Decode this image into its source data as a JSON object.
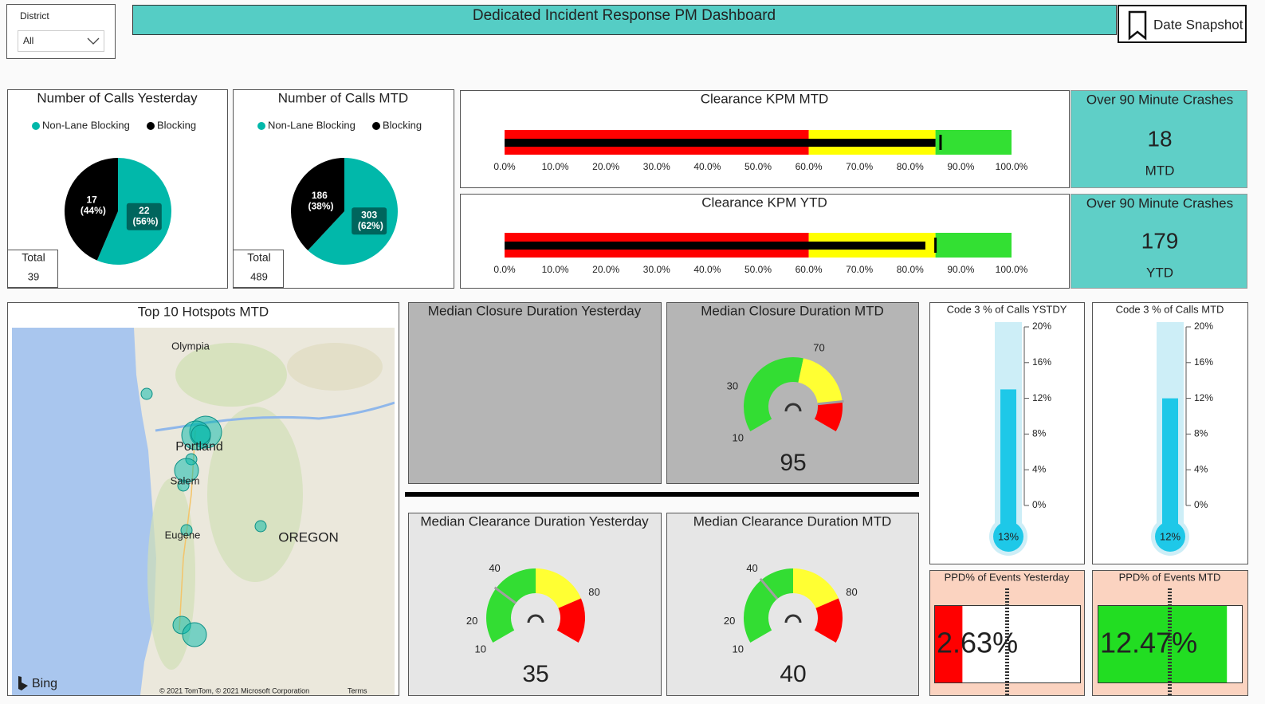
{
  "header": {
    "filter_label": "District",
    "filter_value": "All",
    "title": "Dedicated Incident Response PM Dashboard",
    "snapshot_button": "Date Snapshot"
  },
  "cards": [
    {
      "title": "Over 90 Minute Crashes",
      "value": 18,
      "period": "MTD"
    },
    {
      "title": "Over 90 Minute Crashes",
      "value": 179,
      "period": "YTD"
    }
  ],
  "map": {
    "title": "Top 10 Hotspots MTD",
    "places": [
      "Olympia",
      "Portland",
      "Salem",
      "Eugene",
      "OREGON"
    ],
    "logo": "Bing",
    "attribution": "© 2021 TomTom, © 2021 Microsoft Corporation",
    "terms": "Terms"
  },
  "chart_data": [
    {
      "type": "pie",
      "title": "Number of Calls Yesterday",
      "categories": [
        "Non-Lane Blocking",
        "Blocking"
      ],
      "colors": [
        "#01b8aa",
        "#000000"
      ],
      "values": [
        22,
        17
      ],
      "value_labels": [
        "22 (56%)",
        "17 (44%)"
      ],
      "total_label": "Total",
      "total": 39
    },
    {
      "type": "pie",
      "title": "Number of Calls MTD",
      "categories": [
        "Non-Lane Blocking",
        "Blocking"
      ],
      "colors": [
        "#01b8aa",
        "#000000"
      ],
      "values": [
        303,
        186
      ],
      "value_labels": [
        "303 (62%)",
        "186 (38%)"
      ],
      "total_label": "Total",
      "total": 489
    },
    {
      "type": "bullet",
      "title": "Clearance KPM MTD",
      "value": 85,
      "target": 86,
      "xlim": [
        0,
        100
      ],
      "xticks": [
        {
          "value": 0,
          "label": "0.0%"
        },
        {
          "value": 10,
          "label": "10.0%"
        },
        {
          "value": 20,
          "label": "20.0%"
        },
        {
          "value": 30,
          "label": "30.0%"
        },
        {
          "value": 40,
          "label": "40.0%"
        },
        {
          "value": 50,
          "label": "50.0%"
        },
        {
          "value": 60,
          "label": "60.0%"
        },
        {
          "value": 70,
          "label": "70.0%"
        },
        {
          "value": 80,
          "label": "80.0%"
        },
        {
          "value": 90,
          "label": "90.0%"
        },
        {
          "value": 100,
          "label": "100.0%"
        }
      ],
      "ranges": [
        60,
        85,
        100
      ],
      "range_colors": [
        "#ff0000",
        "#ffff00",
        "#33e033"
      ]
    },
    {
      "type": "bullet",
      "title": "Clearance KPM YTD",
      "value": 83,
      "target": 85,
      "xlim": [
        0,
        100
      ],
      "xticks": [
        {
          "value": 0,
          "label": "0.0%"
        },
        {
          "value": 10,
          "label": "10.0%"
        },
        {
          "value": 20,
          "label": "20.0%"
        },
        {
          "value": 30,
          "label": "30.0%"
        },
        {
          "value": 40,
          "label": "40.0%"
        },
        {
          "value": 50,
          "label": "50.0%"
        },
        {
          "value": 60,
          "label": "60.0%"
        },
        {
          "value": 70,
          "label": "70.0%"
        },
        {
          "value": 80,
          "label": "80.0%"
        },
        {
          "value": 90,
          "label": "90.0%"
        },
        {
          "value": 100,
          "label": "100.0%"
        }
      ],
      "ranges": [
        60,
        85,
        100
      ],
      "range_colors": [
        "#ff0000",
        "#ffff00",
        "#33e033"
      ]
    },
    {
      "type": "gauge",
      "title": "Median Closure Duration Yesterday"
    },
    {
      "type": "gauge",
      "title": "Median Closure Duration MTD",
      "value": 95,
      "range": [
        10,
        110
      ],
      "ticks": [
        10,
        30,
        70
      ],
      "bands": [
        {
          "from": 10,
          "to": 65,
          "color": "#33dd33"
        },
        {
          "from": 65,
          "to": 95,
          "color": "#ffff33"
        },
        {
          "from": 95,
          "to": 110,
          "color": "#ff0000"
        }
      ]
    },
    {
      "type": "gauge",
      "title": "Median Clearance Duration Yesterday",
      "value": 35,
      "range": [
        10,
        100
      ],
      "ticks": [
        10,
        20,
        40,
        80
      ],
      "bands": [
        {
          "from": 10,
          "to": 55,
          "color": "#33dd33"
        },
        {
          "from": 55,
          "to": 80,
          "color": "#ffff33"
        },
        {
          "from": 80,
          "to": 100,
          "color": "#ff0000"
        }
      ]
    },
    {
      "type": "gauge",
      "title": "Median Clearance Duration MTD",
      "value": 40,
      "range": [
        10,
        100
      ],
      "ticks": [
        10,
        20,
        40,
        80
      ],
      "bands": [
        {
          "from": 10,
          "to": 55,
          "color": "#33dd33"
        },
        {
          "from": 55,
          "to": 80,
          "color": "#ffff33"
        },
        {
          "from": 80,
          "to": 100,
          "color": "#ff0000"
        }
      ]
    },
    {
      "type": "thermometer",
      "title": "Code 3 % of Calls YSTDY",
      "value": 13,
      "value_label": "13%",
      "ylim": [
        0,
        20
      ],
      "yticks": [
        {
          "value": 0,
          "label": "0%"
        },
        {
          "value": 4,
          "label": "4%"
        },
        {
          "value": 8,
          "label": "8%"
        },
        {
          "value": 12,
          "label": "12%"
        },
        {
          "value": 16,
          "label": "16%"
        },
        {
          "value": 20,
          "label": "20%"
        }
      ],
      "color": "#1ec8e8"
    },
    {
      "type": "thermometer",
      "title": "Code 3 % of Calls MTD",
      "value": 12,
      "value_label": "12%",
      "ylim": [
        0,
        20
      ],
      "yticks": [
        {
          "value": 0,
          "label": "0%"
        },
        {
          "value": 4,
          "label": "4%"
        },
        {
          "value": 8,
          "label": "8%"
        },
        {
          "value": 12,
          "label": "12%"
        },
        {
          "value": 16,
          "label": "16%"
        },
        {
          "value": 20,
          "label": "20%"
        }
      ],
      "color": "#1ec8e8"
    },
    {
      "type": "progress",
      "title": "PPD% of Events Yesterday",
      "value": 2.63,
      "value_label": "2.63%",
      "xlim": [
        0,
        14
      ],
      "target": 7,
      "color": "#ff0000"
    },
    {
      "type": "progress",
      "title": "PPD% of Events MTD",
      "value": 12.47,
      "value_label": "12.47%",
      "xlim": [
        0,
        14
      ],
      "target": 7,
      "color": "#22dd22"
    }
  ]
}
